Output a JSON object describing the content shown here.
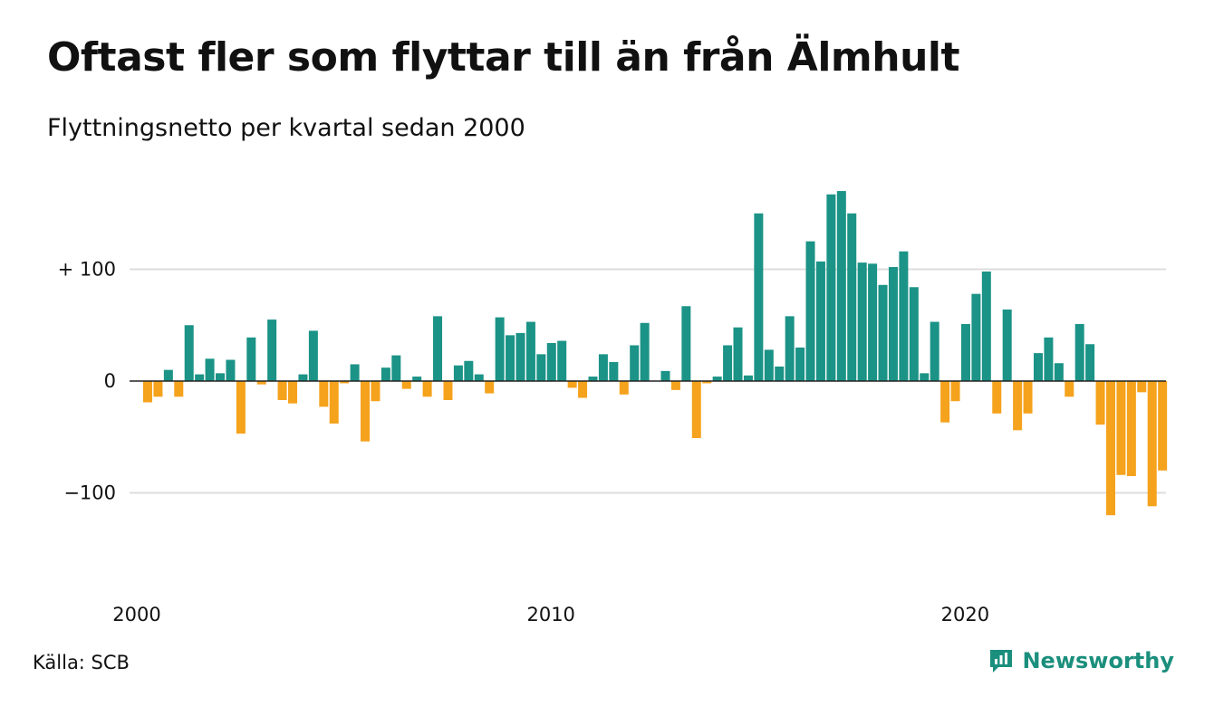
{
  "title": "Oftast fler som flyttar till än från Älmhult",
  "subtitle": "Flyttningsnetto per kvartal sedan 2000",
  "source": "Källa: SCB",
  "brand": {
    "name": "Newsworthy",
    "icon": "newsworthy-logo-icon"
  },
  "colors": {
    "positive": "#1b9386",
    "negative": "#f5a21c",
    "grid": "#dddddd",
    "zero": "#222222"
  },
  "chart_data": {
    "type": "bar",
    "x_unit": "quarter",
    "x_start": "2000 Q1",
    "y_ticks": [
      100,
      0,
      -100
    ],
    "y_tick_labels": [
      "+ 100",
      "0",
      "−100"
    ],
    "x_ticks": [
      2000,
      2010,
      2020
    ],
    "x_tick_labels": [
      "2000",
      "2010",
      "2020"
    ],
    "ylim": [
      -140,
      190
    ],
    "grid": true,
    "values": [
      -19,
      -14,
      10,
      -14,
      50,
      6,
      20,
      7,
      19,
      -47,
      39,
      -3,
      55,
      -17,
      -20,
      6,
      45,
      -23,
      -38,
      -2,
      15,
      -54,
      -18,
      12,
      23,
      -7,
      4,
      -14,
      58,
      -17,
      14,
      18,
      6,
      -11,
      57,
      41,
      43,
      53,
      24,
      34,
      36,
      -6,
      -15,
      4,
      24,
      17,
      -12,
      32,
      52,
      0,
      9,
      -8,
      67,
      -51,
      -2,
      4,
      32,
      48,
      5,
      150,
      28,
      13,
      58,
      30,
      125,
      107,
      167,
      170,
      150,
      106,
      105,
      86,
      102,
      116,
      84,
      7,
      53,
      -37,
      -18,
      51,
      78,
      98,
      -29,
      64,
      -44,
      -29,
      25,
      39,
      16,
      -14,
      51,
      33,
      -39,
      -120,
      -84,
      -85,
      -10,
      -112,
      -80
    ]
  }
}
